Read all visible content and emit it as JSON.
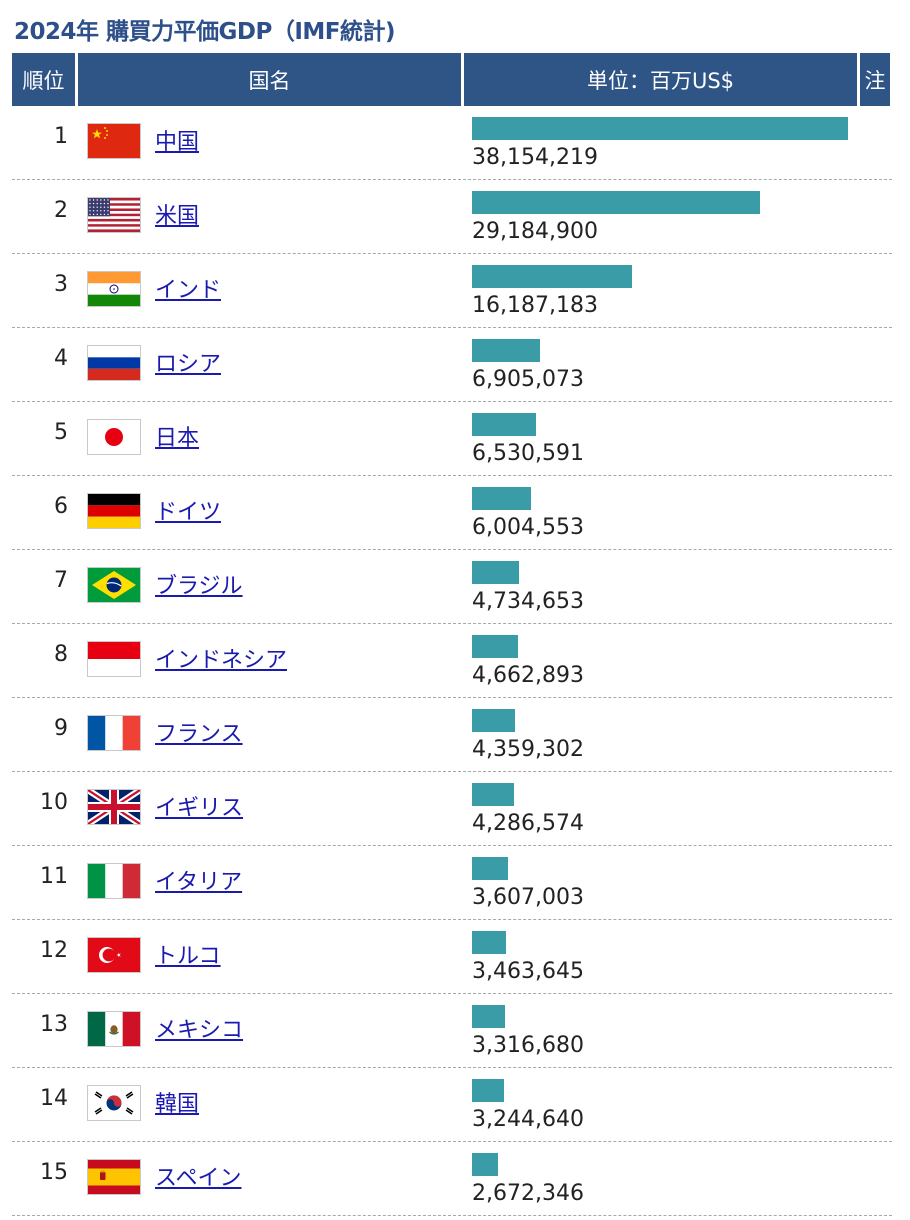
{
  "page": {
    "title": "2024年 購買力平価GDP（IMF統計)"
  },
  "header": {
    "rank": "順位",
    "country": "国名",
    "unit": "単位：百万US$",
    "note": "注"
  },
  "colors": {
    "header_bg": "#2f5486",
    "title": "#2d4f8a",
    "bar": "#3a9ca7",
    "link": "#1a1ab0"
  },
  "chart_data": {
    "type": "bar",
    "title": "2024年 購買力平価GDP（IMF統計)",
    "unit": "単位：百万US$",
    "xlim": [
      0,
      38154219
    ],
    "categories": [
      "中国",
      "米国",
      "インド",
      "ロシア",
      "日本",
      "ドイツ",
      "ブラジル",
      "インドネシア",
      "フランス",
      "イギリス",
      "イタリア",
      "トルコ",
      "メキシコ",
      "韓国",
      "スペイン"
    ],
    "values": [
      38154219,
      29184900,
      16187183,
      6905073,
      6530591,
      6004553,
      4734653,
      4662893,
      4359302,
      4286574,
      3607003,
      3463645,
      3316680,
      3244640,
      2672346
    ],
    "rows": [
      {
        "rank": "1",
        "country": "中国",
        "flag": "china-flag-icon",
        "value": 38154219,
        "value_label": "38,154,219"
      },
      {
        "rank": "2",
        "country": "米国",
        "flag": "usa-flag-icon",
        "value": 29184900,
        "value_label": "29,184,900"
      },
      {
        "rank": "3",
        "country": "インド",
        "flag": "india-flag-icon",
        "value": 16187183,
        "value_label": "16,187,183"
      },
      {
        "rank": "4",
        "country": "ロシア",
        "flag": "russia-flag-icon",
        "value": 6905073,
        "value_label": "6,905,073"
      },
      {
        "rank": "5",
        "country": "日本",
        "flag": "japan-flag-icon",
        "value": 6530591,
        "value_label": "6,530,591"
      },
      {
        "rank": "6",
        "country": "ドイツ",
        "flag": "germany-flag-icon",
        "value": 6004553,
        "value_label": "6,004,553"
      },
      {
        "rank": "7",
        "country": "ブラジル",
        "flag": "brazil-flag-icon",
        "value": 4734653,
        "value_label": "4,734,653"
      },
      {
        "rank": "8",
        "country": "インドネシア",
        "flag": "indonesia-flag-icon",
        "value": 4662893,
        "value_label": "4,662,893"
      },
      {
        "rank": "9",
        "country": "フランス",
        "flag": "france-flag-icon",
        "value": 4359302,
        "value_label": "4,359,302"
      },
      {
        "rank": "10",
        "country": "イギリス",
        "flag": "uk-flag-icon",
        "value": 4286574,
        "value_label": "4,286,574"
      },
      {
        "rank": "11",
        "country": "イタリア",
        "flag": "italy-flag-icon",
        "value": 3607003,
        "value_label": "3,607,003"
      },
      {
        "rank": "12",
        "country": "トルコ",
        "flag": "turkey-flag-icon",
        "value": 3463645,
        "value_label": "3,463,645"
      },
      {
        "rank": "13",
        "country": "メキシコ",
        "flag": "mexico-flag-icon",
        "value": 3316680,
        "value_label": "3,316,680"
      },
      {
        "rank": "14",
        "country": "韓国",
        "flag": "south-korea-flag-icon",
        "value": 3244640,
        "value_label": "3,244,640"
      },
      {
        "rank": "15",
        "country": "スペイン",
        "flag": "spain-flag-icon",
        "value": 2672346,
        "value_label": "2,672,346"
      }
    ]
  }
}
